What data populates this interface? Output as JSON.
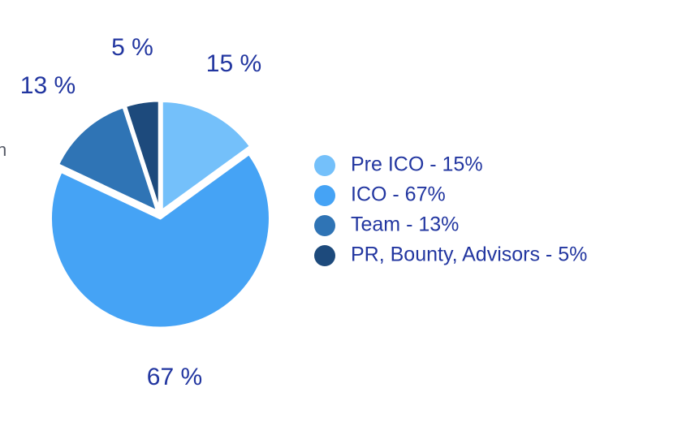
{
  "left_edge_fragment": "n",
  "chart_data": {
    "type": "pie",
    "title": "",
    "categories": [
      "Pre ICO",
      "ICO",
      "Team",
      "PR, Bounty, Advisors"
    ],
    "values": [
      15,
      67,
      13,
      5
    ],
    "slice_labels": [
      "15 %",
      "67 %",
      "13 %",
      "5 %"
    ],
    "legend": {
      "placement": "right",
      "entries": [
        "Pre ICO - 15%",
        "ICO - 67%",
        "Team - 13%",
        "PR, Bounty, Advisors - 5%"
      ]
    },
    "colors": [
      "#74c0fa",
      "#45a3f5",
      "#2f74b5",
      "#1d4a7c"
    ],
    "label_color": "#2236a0",
    "legend_text_color": "#2236a0"
  }
}
